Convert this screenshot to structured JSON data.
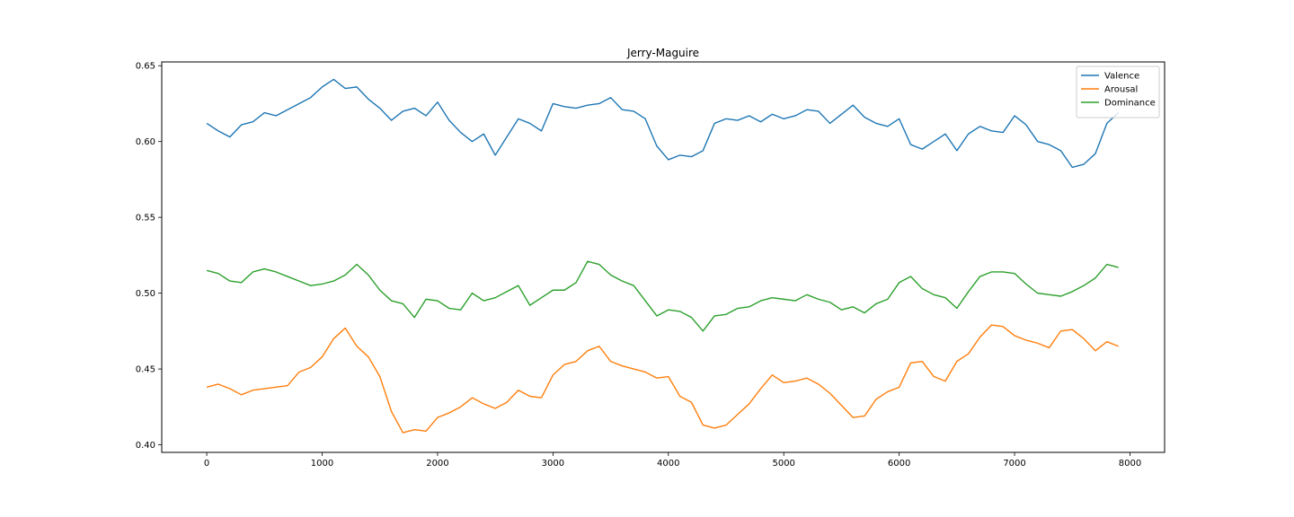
{
  "chart_data": {
    "type": "line",
    "title": "Jerry-Maguire",
    "xlabel": "",
    "ylabel": "",
    "xlim": [
      -390,
      8300
    ],
    "ylim": [
      0.395,
      0.6525
    ],
    "xticks": [
      0,
      1000,
      2000,
      3000,
      4000,
      5000,
      6000,
      7000,
      8000
    ],
    "xtick_labels": [
      "0",
      "1000",
      "2000",
      "3000",
      "4000",
      "5000",
      "6000",
      "7000",
      "8000"
    ],
    "yticks": [
      0.4,
      0.45,
      0.5,
      0.55,
      0.6,
      0.65
    ],
    "ytick_labels": [
      "0.40",
      "0.45",
      "0.50",
      "0.55",
      "0.60",
      "0.65"
    ],
    "grid": false,
    "legend_position": "top-right",
    "series": [
      {
        "name": "Valence",
        "color": "#1f77b4",
        "x": [
          0,
          100,
          200,
          300,
          400,
          500,
          600,
          700,
          800,
          900,
          1000,
          1100,
          1200,
          1300,
          1400,
          1500,
          1600,
          1700,
          1800,
          1900,
          2000,
          2100,
          2200,
          2300,
          2400,
          2500,
          2600,
          2700,
          2800,
          2900,
          3000,
          3100,
          3200,
          3300,
          3400,
          3500,
          3600,
          3700,
          3800,
          3900,
          4000,
          4100,
          4200,
          4300,
          4400,
          4500,
          4600,
          4700,
          4800,
          4900,
          5000,
          5100,
          5200,
          5300,
          5400,
          5500,
          5600,
          5700,
          5800,
          5900,
          6000,
          6100,
          6200,
          6300,
          6400,
          6500,
          6600,
          6700,
          6800,
          6900,
          7000,
          7100,
          7200,
          7300,
          7400,
          7500,
          7600,
          7700,
          7800,
          7900
        ],
        "values": [
          0.612,
          0.607,
          0.603,
          0.611,
          0.613,
          0.619,
          0.617,
          0.621,
          0.625,
          0.629,
          0.636,
          0.641,
          0.635,
          0.636,
          0.628,
          0.622,
          0.614,
          0.62,
          0.622,
          0.617,
          0.626,
          0.614,
          0.606,
          0.6,
          0.605,
          0.591,
          0.603,
          0.615,
          0.612,
          0.607,
          0.625,
          0.623,
          0.622,
          0.624,
          0.625,
          0.629,
          0.621,
          0.62,
          0.615,
          0.597,
          0.588,
          0.591,
          0.59,
          0.594,
          0.612,
          0.615,
          0.614,
          0.617,
          0.613,
          0.618,
          0.615,
          0.617,
          0.621,
          0.62,
          0.612,
          0.618,
          0.624,
          0.616,
          0.612,
          0.61,
          0.615,
          0.598,
          0.595,
          0.6,
          0.605,
          0.594,
          0.605,
          0.61,
          0.607,
          0.606,
          0.617,
          0.611,
          0.6,
          0.598,
          0.594,
          0.583,
          0.585,
          0.592,
          0.612,
          0.619
        ]
      },
      {
        "name": "Arousal",
        "color": "#ff7f0e",
        "x": [
          0,
          100,
          200,
          300,
          400,
          500,
          600,
          700,
          800,
          900,
          1000,
          1100,
          1200,
          1300,
          1400,
          1500,
          1600,
          1700,
          1800,
          1900,
          2000,
          2100,
          2200,
          2300,
          2400,
          2500,
          2600,
          2700,
          2800,
          2900,
          3000,
          3100,
          3200,
          3300,
          3400,
          3500,
          3600,
          3700,
          3800,
          3900,
          4000,
          4100,
          4200,
          4300,
          4400,
          4500,
          4600,
          4700,
          4800,
          4900,
          5000,
          5100,
          5200,
          5300,
          5400,
          5500,
          5600,
          5700,
          5800,
          5900,
          6000,
          6100,
          6200,
          6300,
          6400,
          6500,
          6600,
          6700,
          6800,
          6900,
          7000,
          7100,
          7200,
          7300,
          7400,
          7500,
          7600,
          7700,
          7800,
          7900
        ],
        "values": [
          0.438,
          0.44,
          0.437,
          0.433,
          0.436,
          0.437,
          0.438,
          0.439,
          0.448,
          0.451,
          0.458,
          0.47,
          0.477,
          0.465,
          0.458,
          0.445,
          0.422,
          0.408,
          0.41,
          0.409,
          0.418,
          0.421,
          0.425,
          0.431,
          0.427,
          0.424,
          0.428,
          0.436,
          0.432,
          0.431,
          0.446,
          0.453,
          0.455,
          0.462,
          0.465,
          0.455,
          0.452,
          0.45,
          0.448,
          0.444,
          0.445,
          0.432,
          0.428,
          0.413,
          0.411,
          0.413,
          0.42,
          0.427,
          0.437,
          0.446,
          0.441,
          0.442,
          0.444,
          0.44,
          0.434,
          0.426,
          0.418,
          0.419,
          0.43,
          0.435,
          0.438,
          0.454,
          0.455,
          0.445,
          0.442,
          0.455,
          0.46,
          0.471,
          0.479,
          0.478,
          0.472,
          0.469,
          0.467,
          0.464,
          0.475,
          0.476,
          0.47,
          0.462,
          0.468,
          0.465
        ]
      },
      {
        "name": "Dominance",
        "color": "#2ca02c",
        "x": [
          0,
          100,
          200,
          300,
          400,
          500,
          600,
          700,
          800,
          900,
          1000,
          1100,
          1200,
          1300,
          1400,
          1500,
          1600,
          1700,
          1800,
          1900,
          2000,
          2100,
          2200,
          2300,
          2400,
          2500,
          2600,
          2700,
          2800,
          2900,
          3000,
          3100,
          3200,
          3300,
          3400,
          3500,
          3600,
          3700,
          3800,
          3900,
          4000,
          4100,
          4200,
          4300,
          4400,
          4500,
          4600,
          4700,
          4800,
          4900,
          5000,
          5100,
          5200,
          5300,
          5400,
          5500,
          5600,
          5700,
          5800,
          5900,
          6000,
          6100,
          6200,
          6300,
          6400,
          6500,
          6600,
          6700,
          6800,
          6900,
          7000,
          7100,
          7200,
          7300,
          7400,
          7500,
          7600,
          7700,
          7800,
          7900
        ],
        "values": [
          0.515,
          0.513,
          0.508,
          0.507,
          0.514,
          0.516,
          0.514,
          0.511,
          0.508,
          0.505,
          0.506,
          0.508,
          0.512,
          0.519,
          0.512,
          0.502,
          0.495,
          0.493,
          0.484,
          0.496,
          0.495,
          0.49,
          0.489,
          0.5,
          0.495,
          0.497,
          0.501,
          0.505,
          0.492,
          0.497,
          0.502,
          0.502,
          0.507,
          0.521,
          0.519,
          0.512,
          0.508,
          0.505,
          0.495,
          0.485,
          0.489,
          0.488,
          0.484,
          0.475,
          0.485,
          0.486,
          0.49,
          0.491,
          0.495,
          0.497,
          0.496,
          0.495,
          0.499,
          0.496,
          0.494,
          0.489,
          0.491,
          0.487,
          0.493,
          0.496,
          0.507,
          0.511,
          0.503,
          0.499,
          0.497,
          0.49,
          0.501,
          0.511,
          0.514,
          0.514,
          0.513,
          0.506,
          0.5,
          0.499,
          0.498,
          0.501,
          0.505,
          0.51,
          0.519,
          0.517
        ]
      }
    ]
  }
}
